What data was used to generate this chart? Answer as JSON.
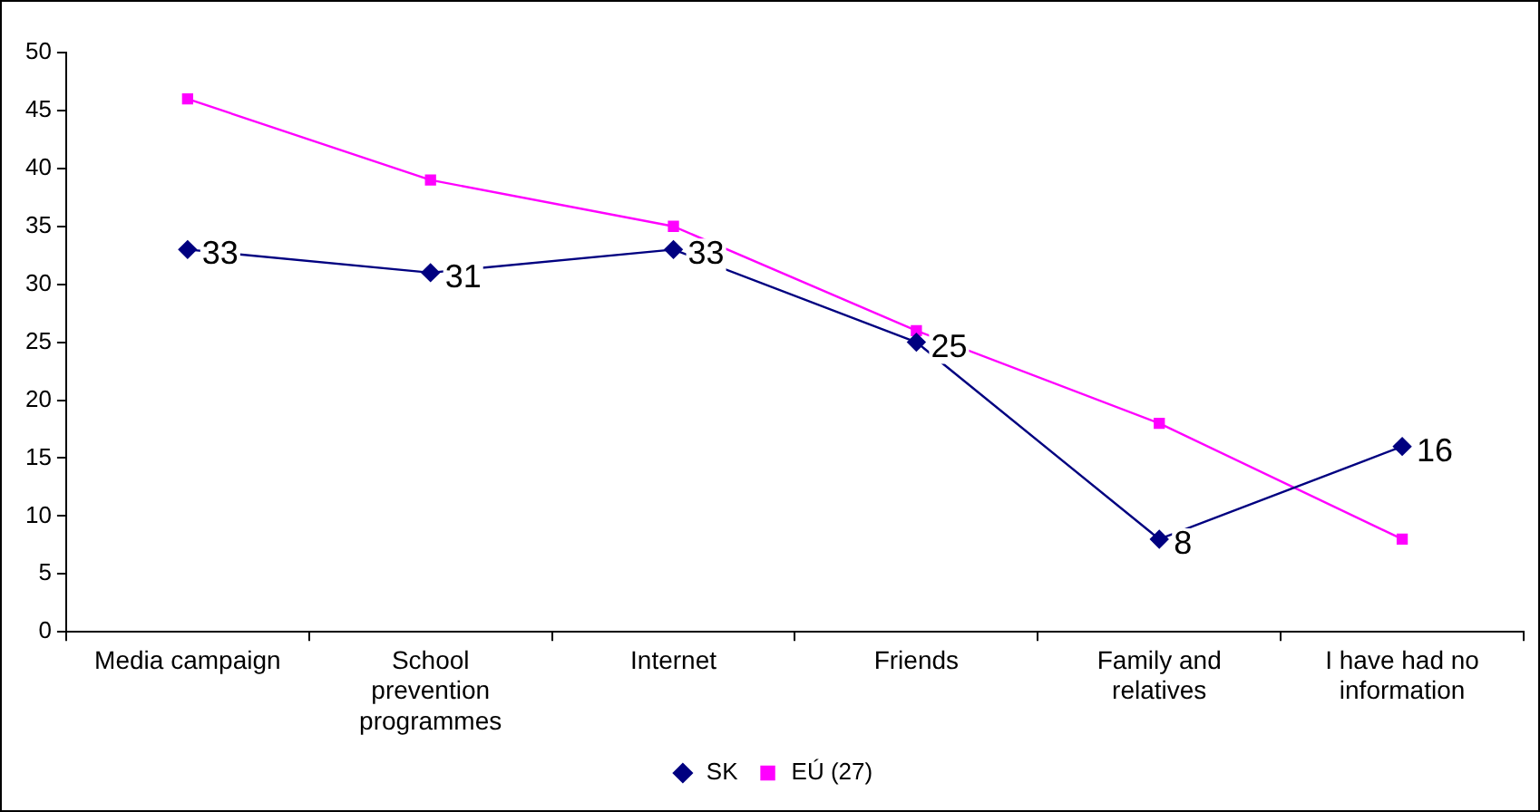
{
  "chart_data": {
    "type": "line",
    "categories": [
      "Media campaign",
      "School prevention programmes",
      "Internet",
      "Friends",
      "Family and relatives",
      "I have had no information"
    ],
    "series": [
      {
        "name": "SK",
        "color": "#000080",
        "marker": "diamond",
        "values": [
          33,
          31,
          33,
          25,
          8,
          16
        ],
        "value_labels": [
          "33",
          "31",
          "33",
          "25",
          "8",
          "16"
        ]
      },
      {
        "name": "EÚ (27)",
        "color": "#ff00ff",
        "marker": "square",
        "values": [
          46,
          39,
          35,
          26,
          18,
          8
        ]
      }
    ],
    "ylim": [
      0,
      50
    ],
    "yticks": [
      0,
      5,
      10,
      15,
      20,
      25,
      30,
      35,
      40,
      45,
      50
    ],
    "grid": false,
    "legend": "bottom"
  }
}
